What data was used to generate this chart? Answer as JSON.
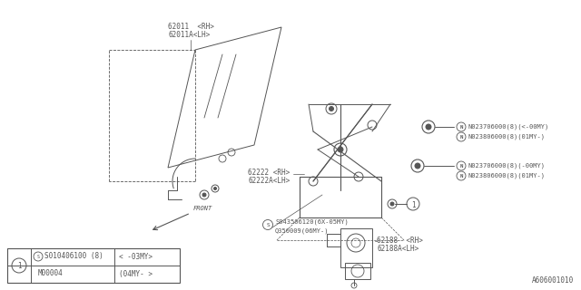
{
  "bg_color": "#ffffff",
  "line_color": "#555555",
  "diagram_code": "A606001010",
  "label_62011": [
    "62011  <RH>",
    "62011A<LH>"
  ],
  "label_62222": [
    "62222 <RH>",
    "62222A<LH>"
  ],
  "label_62188": [
    "62188  <RH>",
    "62188A<LH>"
  ],
  "label_N1": [
    "N023706000(8)(<-00MY)",
    "N023806000(8)(01MY-)"
  ],
  "label_N2": [
    "N023706000(8)(-00MY)",
    "N023806000(8)(01MY-)"
  ],
  "label_S": [
    "S043506120(6X-05MY)",
    "Q350009(06MY-)"
  ],
  "table_row1_c1": "S010406100 (8)",
  "table_row1_c2": "< -03MY>",
  "table_row2_c1": "M00004",
  "table_row2_c2": "(04MY- >"
}
